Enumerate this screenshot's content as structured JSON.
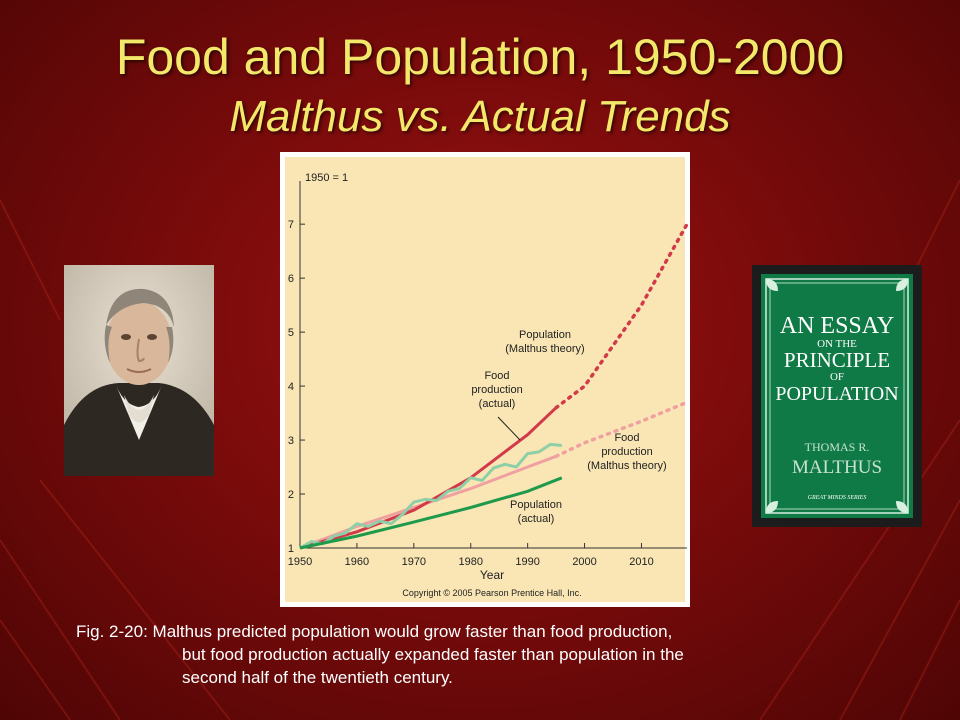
{
  "slide": {
    "title": "Food and Population, 1950-2000",
    "subtitle": "Malthus vs. Actual Trends",
    "caption_lines": [
      "Fig. 2-20: Malthus predicted population would grow faster than food production,",
      "but food production actually expanded faster than population in the",
      "second half of the twentieth century."
    ],
    "book": {
      "title_lines": [
        "AN ESSAY",
        "ON THE",
        "PRINCIPLE",
        "OF",
        "POPULATION"
      ],
      "author_lines": [
        "THOMAS R.",
        "MALTHUS"
      ],
      "series": "GREAT MINDS SERIES"
    },
    "colors": {
      "title": "#f2e86a",
      "background": "#7a0b0b",
      "chart_bg": "#f9e6b4",
      "book_green": "#0f7a45"
    }
  },
  "chart_data": {
    "type": "line",
    "xlabel": "Year",
    "index_note": "1950 = 1",
    "copyright": "Copyright © 2005 Pearson Prentice Hall, Inc.",
    "xlim": [
      1950,
      2018
    ],
    "ylim": [
      1,
      7.8
    ],
    "xticks": [
      1950,
      1960,
      1970,
      1980,
      1990,
      2000,
      2010
    ],
    "yticks": [
      1,
      2,
      3,
      4,
      5,
      6,
      7
    ],
    "series": [
      {
        "name": "Population (Malthus theory)",
        "label_lines": [
          "Population",
          "(Malthus theory)"
        ],
        "color": "#d23a4a",
        "points": [
          [
            1950,
            1.0
          ],
          [
            1960,
            1.3
          ],
          [
            1970,
            1.7
          ],
          [
            1980,
            2.3
          ],
          [
            1990,
            3.1
          ],
          [
            1995,
            3.6
          ],
          [
            2000,
            4.0
          ],
          [
            2010,
            5.5
          ],
          [
            2018,
            7.0
          ]
        ]
      },
      {
        "name": "Food production (actual)",
        "label_lines": [
          "Food",
          "production",
          "(actual)"
        ],
        "color": "#d23a4a",
        "points": [
          [
            1950,
            1.0
          ],
          [
            1960,
            1.3
          ],
          [
            1970,
            1.7
          ],
          [
            1980,
            2.3
          ],
          [
            1990,
            3.1
          ],
          [
            1995,
            3.6
          ]
        ]
      },
      {
        "name": "Food production (Malthus theory)",
        "label_lines": [
          "Food",
          "production",
          "(Malthus theory)"
        ],
        "color": "#f0a0a0",
        "points": [
          [
            1950,
            1.0
          ],
          [
            1960,
            1.4
          ],
          [
            1970,
            1.75
          ],
          [
            1980,
            2.1
          ],
          [
            1990,
            2.5
          ],
          [
            1995,
            2.7
          ],
          [
            2000,
            2.95
          ],
          [
            2010,
            3.35
          ],
          [
            2018,
            3.7
          ]
        ]
      },
      {
        "name": "Food production (actual, fluctuating)",
        "label_lines": [],
        "color": "#8fcfa7",
        "points": [
          [
            1950,
            1.0
          ],
          [
            1952,
            1.12
          ],
          [
            1954,
            1.08
          ],
          [
            1956,
            1.22
          ],
          [
            1958,
            1.28
          ],
          [
            1960,
            1.45
          ],
          [
            1962,
            1.4
          ],
          [
            1964,
            1.5
          ],
          [
            1966,
            1.45
          ],
          [
            1968,
            1.62
          ],
          [
            1970,
            1.85
          ],
          [
            1972,
            1.9
          ],
          [
            1974,
            1.88
          ],
          [
            1976,
            2.05
          ],
          [
            1978,
            2.1
          ],
          [
            1980,
            2.3
          ],
          [
            1982,
            2.25
          ],
          [
            1984,
            2.48
          ],
          [
            1986,
            2.55
          ],
          [
            1988,
            2.5
          ],
          [
            1990,
            2.75
          ],
          [
            1992,
            2.78
          ],
          [
            1994,
            2.92
          ],
          [
            1996,
            2.9
          ]
        ]
      },
      {
        "name": "Population (actual)",
        "label_lines": [
          "Population",
          "(actual)"
        ],
        "color": "#1f9a4d",
        "points": [
          [
            1950,
            1.0
          ],
          [
            1960,
            1.22
          ],
          [
            1970,
            1.48
          ],
          [
            1980,
            1.75
          ],
          [
            1990,
            2.05
          ],
          [
            1996,
            2.3
          ]
        ]
      }
    ]
  }
}
